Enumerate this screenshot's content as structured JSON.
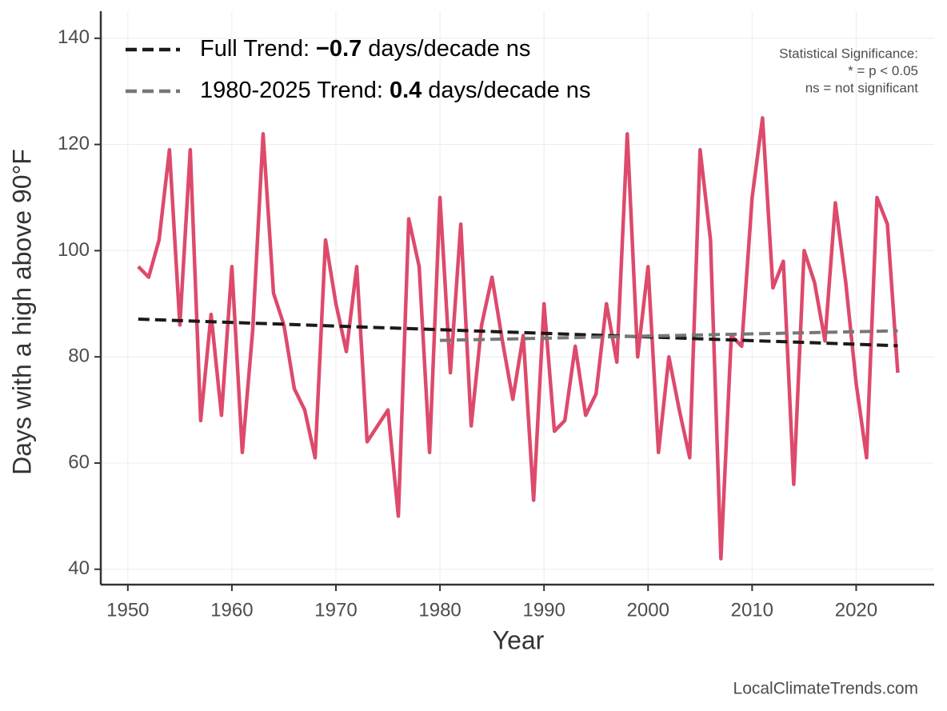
{
  "chart_data": {
    "type": "line",
    "xlabel": "Year",
    "ylabel": "Days with a high above 90°F",
    "xlim": [
      1947.4,
      2027.5
    ],
    "ylim": [
      37.1,
      145.1
    ],
    "xticks": [
      1950,
      1960,
      1970,
      1980,
      1990,
      2000,
      2010,
      2020
    ],
    "yticks": [
      40,
      60,
      80,
      100,
      120,
      140
    ],
    "grid": true,
    "series": [
      {
        "color": "#dd4a6c",
        "x": [
          1951,
          1952,
          1953,
          1954,
          1955,
          1956,
          1957,
          1958,
          1959,
          1960,
          1961,
          1962,
          1963,
          1964,
          1965,
          1966,
          1967,
          1968,
          1969,
          1970,
          1971,
          1972,
          1973,
          1974,
          1975,
          1976,
          1977,
          1978,
          1979,
          1980,
          1981,
          1982,
          1983,
          1984,
          1985,
          1986,
          1987,
          1988,
          1989,
          1990,
          1991,
          1992,
          1993,
          1994,
          1995,
          1996,
          1997,
          1998,
          1999,
          2000,
          2001,
          2002,
          2003,
          2004,
          2005,
          2006,
          2007,
          2008,
          2009,
          2010,
          2011,
          2012,
          2013,
          2014,
          2015,
          2016,
          2017,
          2018,
          2019,
          2020,
          2021,
          2022,
          2023,
          2024
        ],
        "values": [
          97,
          95,
          102,
          119,
          86,
          119,
          68,
          88,
          69,
          97,
          62,
          85,
          122,
          92,
          86,
          74,
          70,
          61,
          102,
          90,
          81,
          97,
          64,
          67,
          70,
          50,
          106,
          97,
          62,
          110,
          77,
          105,
          67,
          86,
          95,
          83,
          72,
          84,
          53,
          90,
          66,
          68,
          82,
          69,
          73,
          90,
          79,
          122,
          80,
          97,
          62,
          80,
          70,
          61,
          119,
          102,
          42,
          84,
          82,
          110,
          125,
          93,
          98,
          56,
          100,
          94,
          83,
          109,
          94,
          75,
          61,
          110,
          105,
          77
        ]
      },
      {
        "name": "Full Trend:",
        "trend": "−0.7",
        "unit": "days/decade ns",
        "color": "#1a1a1a",
        "dashed": true,
        "x": [
          1951,
          2024
        ],
        "values": [
          87.1,
          82.1
        ]
      },
      {
        "name": "1980-2025 Trend:",
        "trend": "0.4",
        "unit": "days/decade ns",
        "color": "#777777",
        "dashed": true,
        "x": [
          1980,
          2024
        ],
        "values": [
          83.1,
          84.9
        ]
      }
    ],
    "legend": "top-left",
    "annotations": [
      "Statistical Significance:",
      "* = p < 0.05",
      "ns = not significant"
    ],
    "credit": "LocalClimateTrends.com"
  }
}
